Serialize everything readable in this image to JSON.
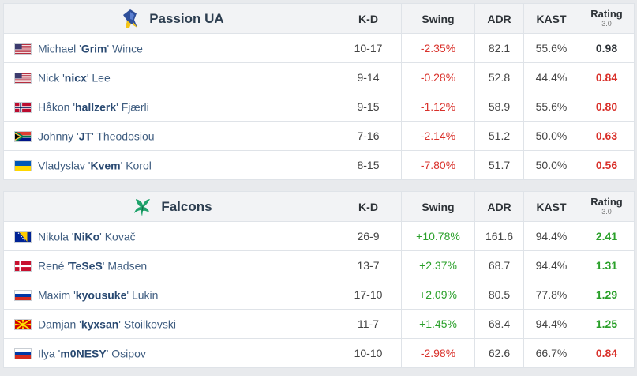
{
  "colors": {
    "negative": "#d9312b",
    "positive": "#2aa02a",
    "neutral": "#2e3338"
  },
  "teams": [
    {
      "name": "Passion UA",
      "logo_icon": "passion-ua-logo-icon",
      "columns": {
        "kd": "K-D",
        "swing": "Swing",
        "adr": "ADR",
        "kast": "KAST",
        "rating": "Rating",
        "rating_version": "3.0"
      },
      "players": [
        {
          "flag": "us",
          "first": "Michael '",
          "nick": "Grim",
          "last": "' Wince",
          "kd": "10-17",
          "swing": "-2.35%",
          "adr": "82.1",
          "kast": "55.6%",
          "rating": "0.98"
        },
        {
          "flag": "us",
          "first": "Nick '",
          "nick": "nicx",
          "last": "' Lee",
          "kd": "9-14",
          "swing": "-0.28%",
          "adr": "52.8",
          "kast": "44.4%",
          "rating": "0.84"
        },
        {
          "flag": "no",
          "first": "Håkon '",
          "nick": "hallzerk",
          "last": "' Fjærli",
          "kd": "9-15",
          "swing": "-1.12%",
          "adr": "58.9",
          "kast": "55.6%",
          "rating": "0.80"
        },
        {
          "flag": "za",
          "first": "Johnny '",
          "nick": "JT",
          "last": "' Theodosiou",
          "kd": "7-16",
          "swing": "-2.14%",
          "adr": "51.2",
          "kast": "50.0%",
          "rating": "0.63"
        },
        {
          "flag": "ua",
          "first": "Vladyslav '",
          "nick": "Kvem",
          "last": "' Korol",
          "kd": "8-15",
          "swing": "-7.80%",
          "adr": "51.7",
          "kast": "50.0%",
          "rating": "0.56"
        }
      ]
    },
    {
      "name": "Falcons",
      "logo_icon": "falcons-logo-icon",
      "columns": {
        "kd": "K-D",
        "swing": "Swing",
        "adr": "ADR",
        "kast": "KAST",
        "rating": "Rating",
        "rating_version": "3.0"
      },
      "players": [
        {
          "flag": "ba",
          "first": "Nikola '",
          "nick": "NiKo",
          "last": "' Kovač",
          "kd": "26-9",
          "swing": "+10.78%",
          "adr": "161.6",
          "kast": "94.4%",
          "rating": "2.41"
        },
        {
          "flag": "dk",
          "first": "René '",
          "nick": "TeSeS",
          "last": "' Madsen",
          "kd": "13-7",
          "swing": "+2.37%",
          "adr": "68.7",
          "kast": "94.4%",
          "rating": "1.31"
        },
        {
          "flag": "ru",
          "first": "Maxim '",
          "nick": "kyousuke",
          "last": "' Lukin",
          "kd": "17-10",
          "swing": "+2.09%",
          "adr": "80.5",
          "kast": "77.8%",
          "rating": "1.29"
        },
        {
          "flag": "mk",
          "first": "Damjan '",
          "nick": "kyxsan",
          "last": "' Stoilkovski",
          "kd": "11-7",
          "swing": "+1.45%",
          "adr": "68.4",
          "kast": "94.4%",
          "rating": "1.25"
        },
        {
          "flag": "ru",
          "first": "Ilya '",
          "nick": "m0NESY",
          "last": "' Osipov",
          "kd": "10-10",
          "swing": "-2.98%",
          "adr": "62.6",
          "kast": "66.7%",
          "rating": "0.84"
        }
      ]
    }
  ]
}
